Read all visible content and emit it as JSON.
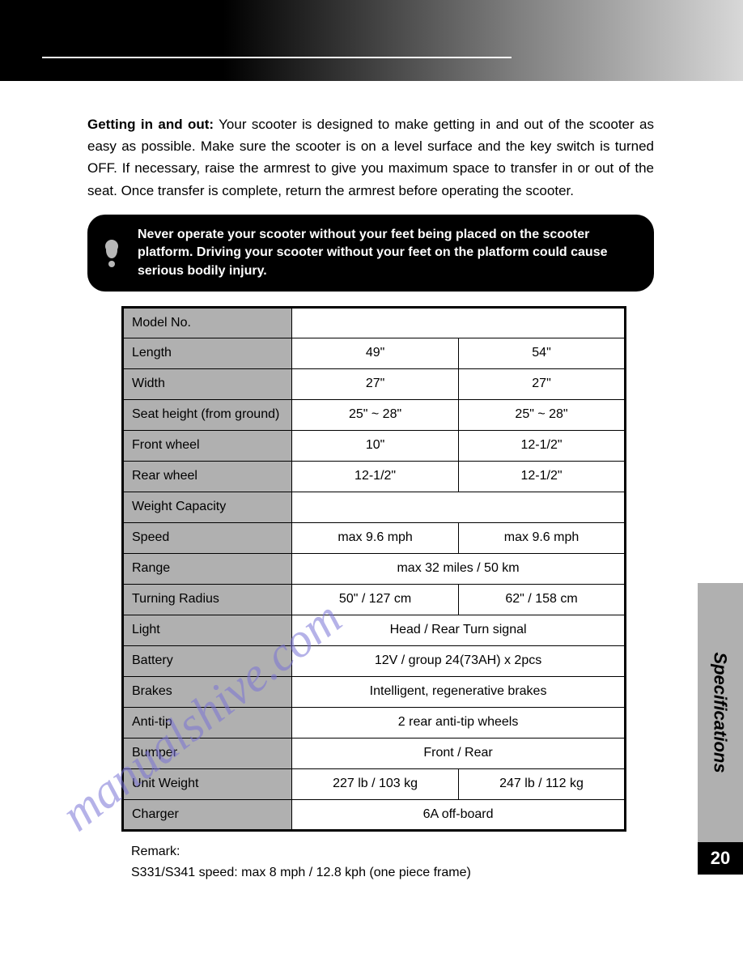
{
  "intro": {
    "bold_lead": "Getting in and out:",
    "text": " Your scooter is designed to make getting in and out of the scooter as easy as possible. Make sure the scooter is on a level surface and the key switch is turned OFF. If necessary, raise the armrest to give you maximum space to transfer in or out of the seat. Once transfer is complete, return the armrest before operating the scooter."
  },
  "warning": "Never operate your scooter without your feet being placed on the scooter platform. Driving your scooter without your feet on the platform could cause serious bodily injury.",
  "table": {
    "rows": [
      {
        "label": "Model No.",
        "col1": "",
        "col2": "",
        "merged": true,
        "value": ""
      },
      {
        "label": "Length",
        "col1": "49\"",
        "col2": "54\""
      },
      {
        "label": "Width",
        "col1": "27\"",
        "col2": "27\""
      },
      {
        "label": "Seat height (from ground)",
        "col1": "25\" ~ 28\"",
        "col2": "25\" ~ 28\""
      },
      {
        "label": "Front wheel",
        "col1": "10\"",
        "col2": "12-1/2\""
      },
      {
        "label": "Rear wheel",
        "col1": "12-1/2\"",
        "col2": "12-1/2\""
      },
      {
        "label": "Weight Capacity",
        "merged": true,
        "value": ""
      },
      {
        "label": "Speed",
        "col1": "max 9.6 mph",
        "col2": "max 9.6 mph"
      },
      {
        "label": "Range",
        "merged": true,
        "value": "max 32 miles / 50 km"
      },
      {
        "label": "Turning Radius",
        "col1": "50\" / 127 cm",
        "col2": "62\" / 158 cm"
      },
      {
        "label": "Light",
        "merged": true,
        "value": "Head / Rear  Turn signal"
      },
      {
        "label": "Battery",
        "merged": true,
        "value": "12V / group 24(73AH) x 2pcs"
      },
      {
        "label": "Brakes",
        "merged": true,
        "value": "Intelligent, regenerative brakes"
      },
      {
        "label": "Anti-tip",
        "merged": true,
        "value": "2 rear anti-tip wheels"
      },
      {
        "label": "Bumper",
        "merged": true,
        "value": "Front / Rear"
      },
      {
        "label": "Unit Weight",
        "col1": "227 lb / 103 kg",
        "col2": "247 lb / 112 kg"
      },
      {
        "label": "Charger",
        "merged": true,
        "value": "6A off-board"
      }
    ]
  },
  "remark": {
    "title": "Remark:",
    "line": "S331/S341 speed: max 8 mph / 12.8 kph (one piece frame)"
  },
  "side_tab": "Specifications",
  "page_number": "20",
  "watermark": "manualshive.com",
  "colors": {
    "label_bg": "#b0b0b0",
    "warning_bg": "#000000",
    "watermark_color": "#7a74d6"
  }
}
